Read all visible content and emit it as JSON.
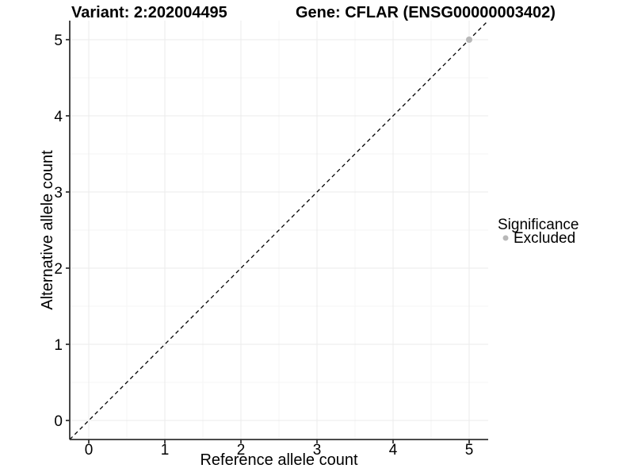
{
  "chart_data": {
    "type": "scatter",
    "titles": {
      "left": "Variant: 2:202004495",
      "right": "Gene: CFLAR (ENSG00000003402)"
    },
    "xlabel": "Reference allele count",
    "ylabel": "Alternative allele count",
    "xlim": [
      -0.25,
      5.25
    ],
    "ylim": [
      -0.25,
      5.25
    ],
    "xticks": [
      0,
      1,
      2,
      3,
      4,
      5
    ],
    "yticks": [
      0,
      1,
      2,
      3,
      4,
      5
    ],
    "xticks_minor": [
      0.5,
      1.5,
      2.5,
      3.5,
      4.5
    ],
    "yticks_minor": [
      0.5,
      1.5,
      2.5,
      3.5,
      4.5
    ],
    "grid": true,
    "series": [
      {
        "name": "Excluded",
        "marker": "circle",
        "color": "#b8b8b8",
        "points": [
          {
            "x": 5,
            "y": 5
          }
        ]
      }
    ],
    "reference_line": {
      "kind": "identity",
      "equation": "y = x",
      "style": "dashed",
      "color": "#000000",
      "x_from": -0.25,
      "y_from": -0.25,
      "x_to": 5.25,
      "y_to": 5.25
    },
    "legend": {
      "position": "right",
      "title": "Significance",
      "items": [
        {
          "label": "Excluded",
          "color": "#b8b8b8",
          "marker": "circle"
        }
      ]
    },
    "colors": {
      "background": "#ffffff",
      "grid_major": "#ebebeb",
      "grid_minor": "#f5f5f5",
      "axis_line": "#333333",
      "tick_mark": "#333333",
      "text": "#000000"
    }
  }
}
